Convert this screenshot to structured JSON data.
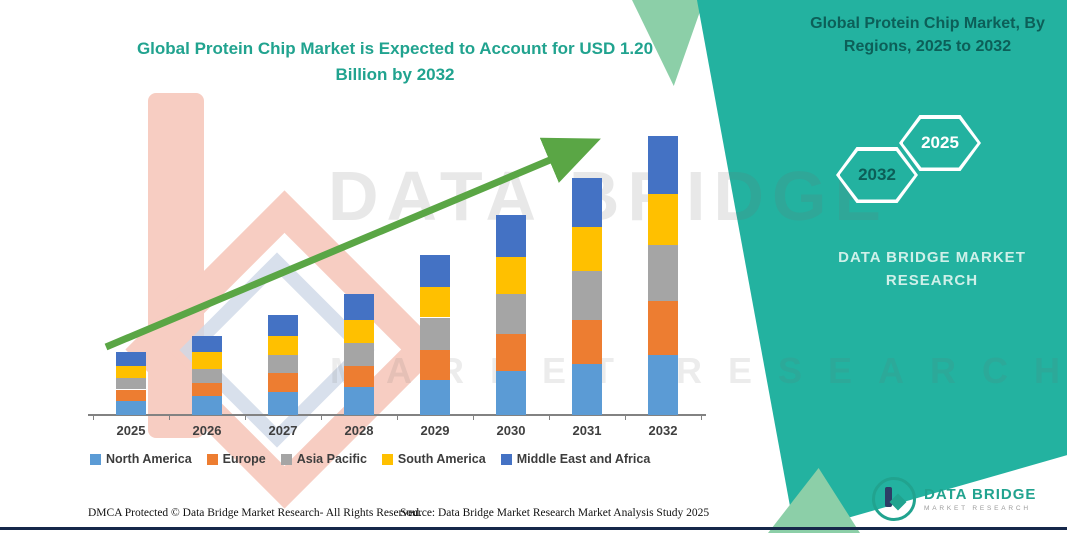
{
  "colors": {
    "brand_teal": "#23b2a0",
    "title_teal": "#21a38f",
    "accent_green": "#8ccfa8",
    "arrow_green": "#5aa645",
    "footer_line_navy": "#16284a"
  },
  "title": {
    "line1": "Global Protein Chip Market is Expected to Account for USD 1.20",
    "line2": "Billion by 2032"
  },
  "ribbon": {
    "title_line1": "Global Protein Chip Market, By",
    "title_line2": "Regions, 2025 to 2032",
    "hexagons": [
      "2032",
      "2025"
    ],
    "brand_line1": "DATA BRIDGE MARKET",
    "brand_line2": "RESEARCH"
  },
  "watermark": {
    "line1": "DATA BRIDGE",
    "line2": "MARKET RESEARCH"
  },
  "chart_data": {
    "type": "bar",
    "stacked": true,
    "title": "Global Protein Chip Market is Expected to Account for USD 1.20 Billion by 2032",
    "categories": [
      "2025",
      "2026",
      "2027",
      "2028",
      "2029",
      "2030",
      "2031",
      "2032"
    ],
    "series": [
      {
        "name": "North America",
        "color": "#5B9BD5",
        "values": [
          0.06,
          0.08,
          0.1,
          0.12,
          0.15,
          0.19,
          0.22,
          0.26
        ]
      },
      {
        "name": "Europe",
        "color": "#ED7D31",
        "values": [
          0.05,
          0.06,
          0.08,
          0.09,
          0.13,
          0.16,
          0.19,
          0.23
        ]
      },
      {
        "name": "Asia Pacific",
        "color": "#A5A5A5",
        "values": [
          0.05,
          0.06,
          0.08,
          0.1,
          0.14,
          0.17,
          0.21,
          0.24
        ]
      },
      {
        "name": "South America",
        "color": "#FFC000",
        "values": [
          0.05,
          0.07,
          0.08,
          0.1,
          0.13,
          0.16,
          0.19,
          0.22
        ]
      },
      {
        "name": "Middle East and Africa",
        "color": "#4472C4",
        "values": [
          0.06,
          0.07,
          0.09,
          0.11,
          0.14,
          0.18,
          0.21,
          0.25
        ]
      }
    ],
    "totals_usd_billion": [
      0.27,
      0.34,
      0.43,
      0.52,
      0.69,
      0.86,
      1.02,
      1.2
    ],
    "ylim": [
      0,
      1.3
    ],
    "value_unit": "USD Billion",
    "xlabel": "",
    "ylabel": "",
    "grid": false,
    "legend_position": "bottom",
    "trend_arrow": true,
    "trend_arrow_color": "#5aa645"
  },
  "footer": {
    "dmca": "DMCA Protected © Data Bridge Market Research-  All Rights Reserved.",
    "source": "Source: Data Bridge Market Research  Market Analysis Study 2025"
  },
  "logo": {
    "name": "DATA BRIDGE",
    "subtext": "MARKET RESEARCH"
  }
}
